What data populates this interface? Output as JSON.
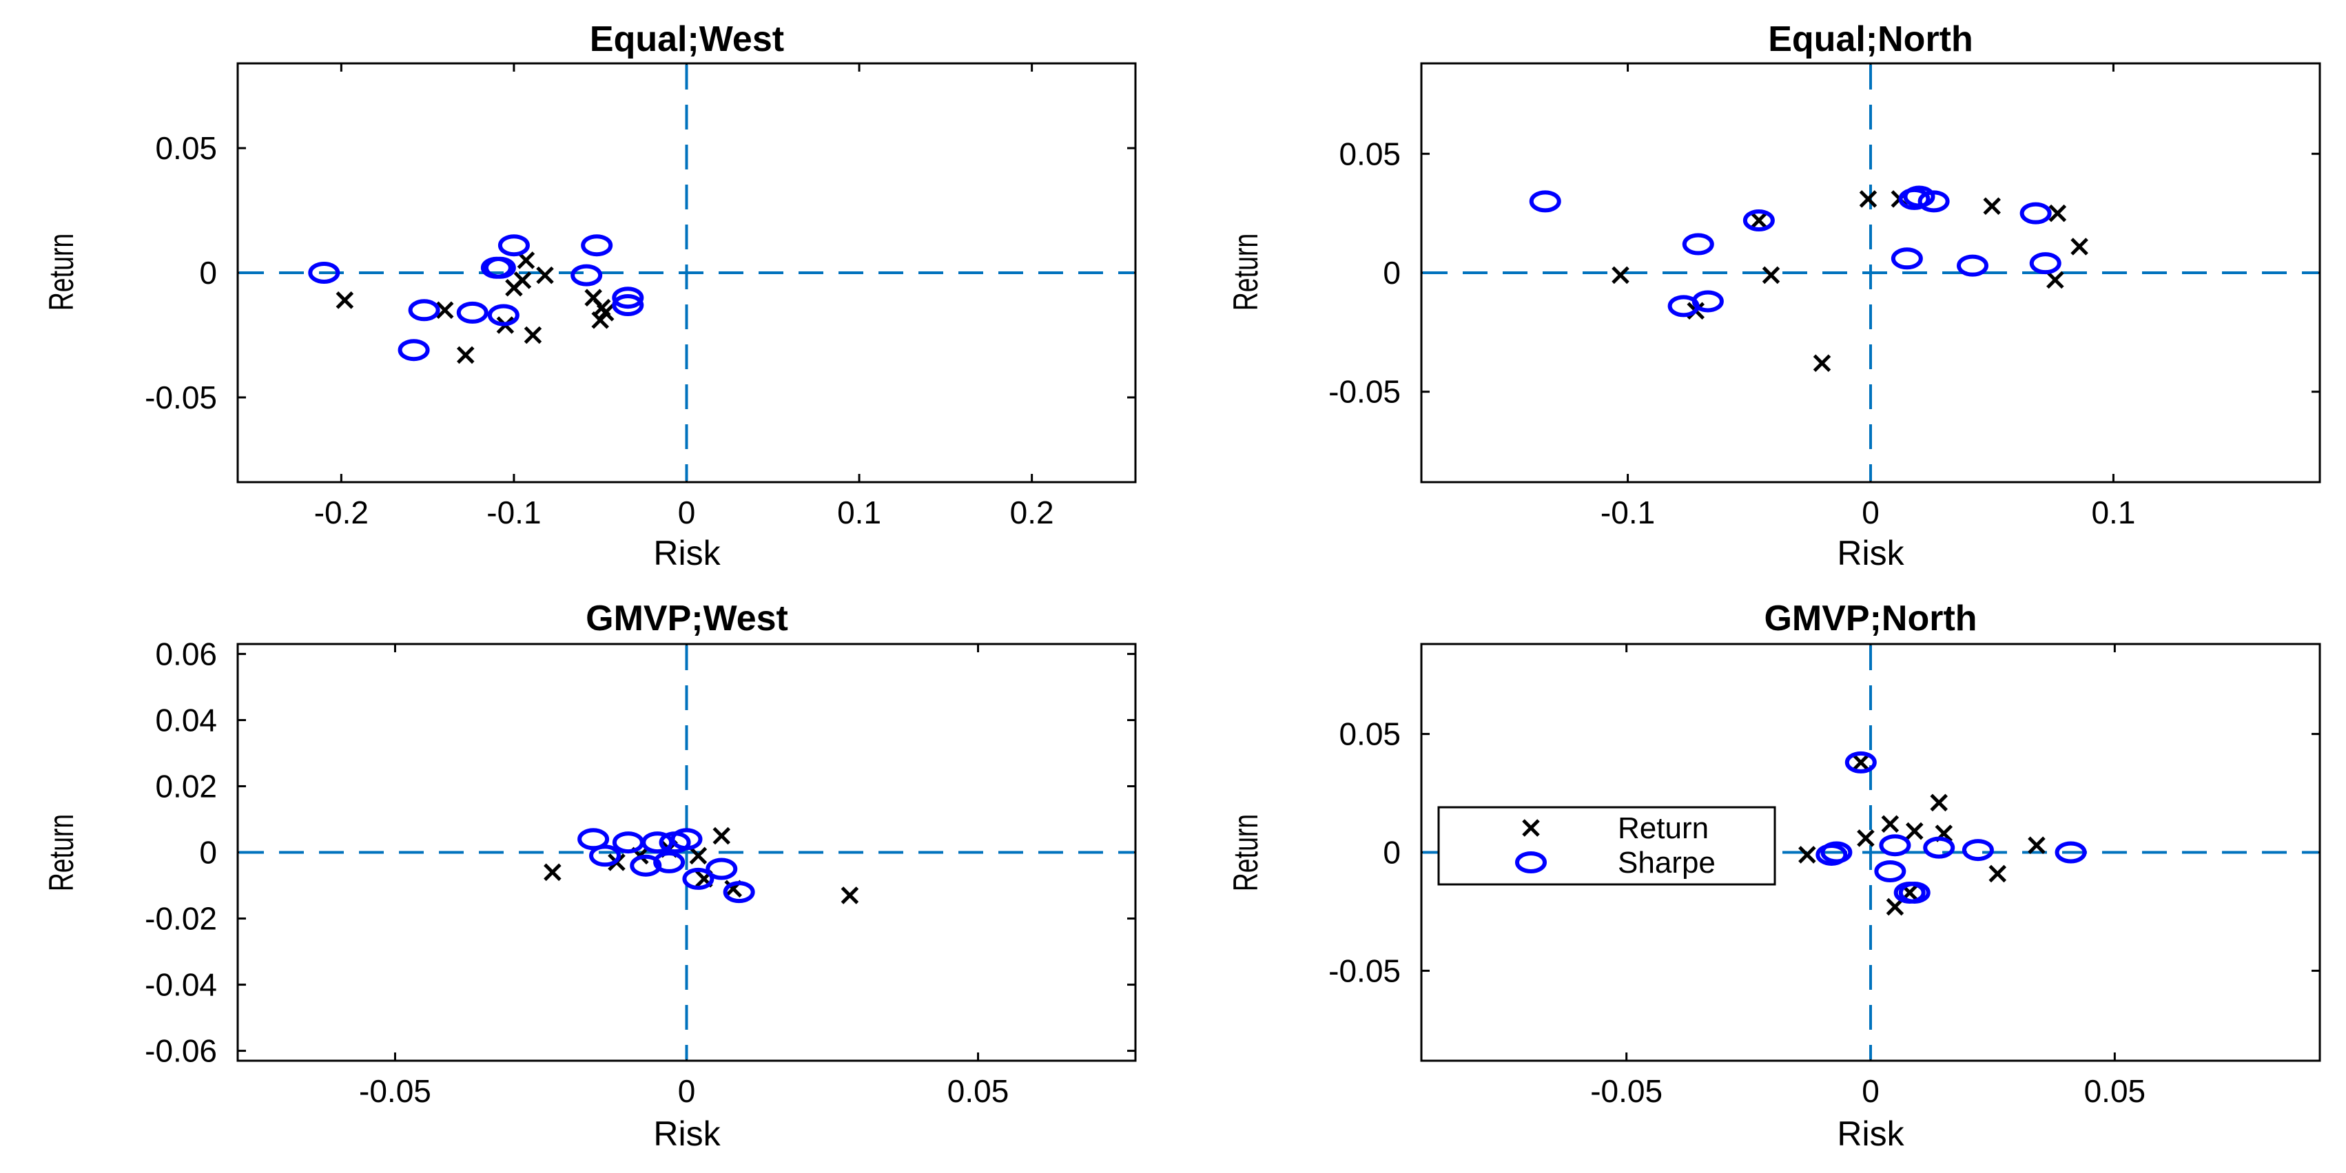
{
  "colors": {
    "return_marker": "#000000",
    "sharpe_marker": "#0000FF",
    "refline": "#0072BD"
  },
  "legend": {
    "return_label": "Return",
    "sharpe_label": "Sharpe"
  },
  "chart_data": [
    {
      "type": "scatter",
      "title": "Equal;West",
      "xlabel": "Risk",
      "ylabel": "Return",
      "xlim": [
        -0.26,
        0.26
      ],
      "ylim": [
        -0.084,
        0.084
      ],
      "xticks": [
        -0.2,
        -0.1,
        0,
        0.1,
        0.2
      ],
      "xticklabels": [
        "-0.2",
        "-0.1",
        "0",
        "0.1",
        "0.2"
      ],
      "yticks": [
        -0.05,
        0,
        0.05
      ],
      "yticklabels": [
        "-0.05",
        "0",
        "0.05"
      ],
      "grid": false,
      "series": [
        {
          "name": "Return",
          "marker": "x",
          "x": [
            -0.198,
            -0.14,
            -0.128,
            -0.105,
            -0.1,
            -0.095,
            -0.093,
            -0.089,
            -0.082,
            -0.054,
            -0.05,
            -0.049,
            -0.047
          ],
          "y": [
            -0.011,
            -0.015,
            -0.033,
            -0.021,
            -0.006,
            -0.003,
            0.005,
            -0.025,
            -0.001,
            -0.01,
            -0.019,
            -0.014,
            -0.016
          ]
        },
        {
          "name": "Sharpe",
          "marker": "o",
          "x": [
            -0.21,
            -0.158,
            -0.152,
            -0.124,
            -0.11,
            -0.108,
            -0.106,
            -0.1,
            -0.058,
            -0.052,
            -0.034,
            -0.034
          ],
          "y": [
            0.0,
            -0.031,
            -0.015,
            -0.016,
            0.002,
            0.002,
            -0.017,
            0.011,
            -0.001,
            0.011,
            -0.01,
            -0.013
          ]
        }
      ]
    },
    {
      "type": "scatter",
      "title": "Equal;North",
      "xlabel": "Risk",
      "ylabel": "Return",
      "xlim": [
        -0.185,
        0.185
      ],
      "ylim": [
        -0.088,
        0.088
      ],
      "xticks": [
        -0.1,
        0,
        0.1
      ],
      "xticklabels": [
        "-0.1",
        "0",
        "0.1"
      ],
      "yticks": [
        -0.05,
        0,
        0.05
      ],
      "yticklabels": [
        "-0.05",
        "0",
        "0.05"
      ],
      "grid": false,
      "series": [
        {
          "name": "Return",
          "marker": "x",
          "x": [
            -0.103,
            -0.072,
            -0.046,
            -0.041,
            -0.02,
            -0.001,
            0.012,
            0.05,
            0.077,
            0.076,
            0.086
          ],
          "y": [
            -0.001,
            -0.016,
            0.022,
            -0.001,
            -0.038,
            0.031,
            0.031,
            0.028,
            0.025,
            -0.003,
            0.011
          ]
        },
        {
          "name": "Sharpe",
          "marker": "o",
          "x": [
            -0.134,
            -0.077,
            -0.071,
            -0.067,
            -0.046,
            0.015,
            0.018,
            0.02,
            0.026,
            0.042,
            0.068,
            0.072
          ],
          "y": [
            0.03,
            -0.014,
            0.012,
            -0.012,
            0.022,
            0.006,
            0.031,
            0.032,
            0.03,
            0.003,
            0.025,
            0.004
          ]
        }
      ]
    },
    {
      "type": "scatter",
      "title": "GMVP;West",
      "xlabel": "Risk",
      "ylabel": "Return",
      "xlim": [
        -0.077,
        0.077
      ],
      "ylim": [
        -0.063,
        0.063
      ],
      "xticks": [
        -0.05,
        0,
        0.05
      ],
      "xticklabels": [
        "-0.05",
        "0",
        "0.05"
      ],
      "yticks": [
        -0.06,
        -0.04,
        -0.02,
        0,
        0.02,
        0.04,
        0.06
      ],
      "yticklabels": [
        "-0.06",
        "-0.04",
        "-0.02",
        "0",
        "0.02",
        "0.04",
        "0.06"
      ],
      "grid": false,
      "series": [
        {
          "name": "Return",
          "marker": "x",
          "x": [
            -0.023,
            -0.012,
            -0.008,
            -0.003,
            0.002,
            0.003,
            0.006,
            0.008,
            0.028
          ],
          "y": [
            -0.006,
            -0.003,
            -0.001,
            0.001,
            -0.001,
            -0.008,
            0.005,
            -0.011,
            -0.013
          ]
        },
        {
          "name": "Sharpe",
          "marker": "o",
          "x": [
            -0.016,
            -0.014,
            -0.01,
            -0.007,
            -0.005,
            -0.003,
            -0.002,
            0.0,
            0.002,
            0.006,
            0.009
          ],
          "y": [
            0.004,
            -0.001,
            0.003,
            -0.004,
            0.003,
            -0.003,
            0.003,
            0.004,
            -0.008,
            -0.005,
            -0.012
          ]
        }
      ]
    },
    {
      "type": "scatter",
      "title": "GMVP;North",
      "xlabel": "Risk",
      "ylabel": "Return",
      "xlim": [
        -0.092,
        0.092
      ],
      "ylim": [
        -0.088,
        0.088
      ],
      "xticks": [
        -0.05,
        0,
        0.05
      ],
      "xticklabels": [
        "-0.05",
        "0",
        "0.05"
      ],
      "yticks": [
        -0.05,
        0,
        0.05
      ],
      "yticklabels": [
        "-0.05",
        "0",
        "0.05"
      ],
      "grid": false,
      "legend": "left",
      "series": [
        {
          "name": "Return",
          "marker": "x",
          "x": [
            -0.013,
            -0.002,
            -0.001,
            0.004,
            0.005,
            0.008,
            0.009,
            0.014,
            0.015,
            0.026,
            0.034
          ],
          "y": [
            -0.001,
            0.038,
            0.006,
            0.012,
            -0.023,
            -0.017,
            0.009,
            0.021,
            0.008,
            -0.009,
            0.003
          ]
        },
        {
          "name": "Sharpe",
          "marker": "o",
          "x": [
            -0.008,
            -0.007,
            -0.002,
            0.004,
            0.005,
            0.008,
            0.009,
            0.014,
            0.022,
            0.041
          ],
          "y": [
            -0.001,
            0.0,
            0.038,
            -0.008,
            0.003,
            -0.017,
            -0.017,
            0.002,
            0.001,
            0.0
          ]
        }
      ]
    }
  ]
}
